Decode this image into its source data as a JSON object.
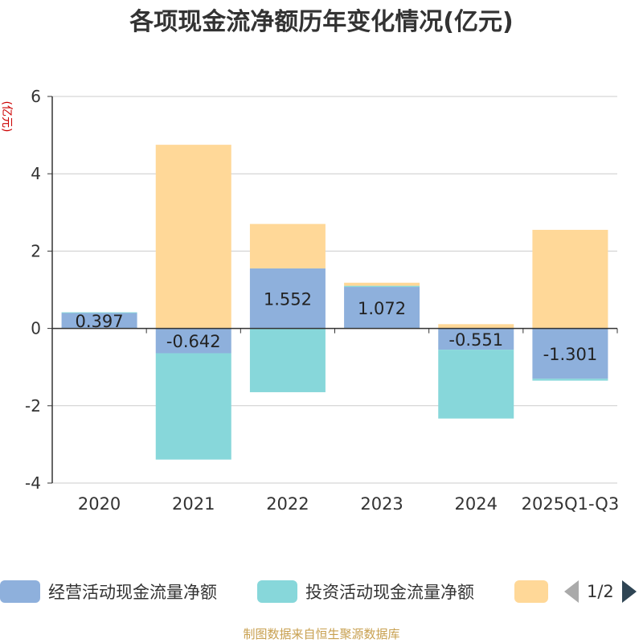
{
  "chart_data": {
    "type": "bar",
    "stacked": true,
    "title": "各项现金流净额历年变化情况(亿元)",
    "ylabel": "(亿元)",
    "xlabel": "",
    "ylim": [
      -4,
      6
    ],
    "yticks": [
      -4,
      -2,
      0,
      2,
      4,
      6
    ],
    "categories": [
      "2020",
      "2021",
      "2022",
      "2023",
      "2024",
      "2025Q1-Q3"
    ],
    "series": [
      {
        "name": "经营活动现金流量净额",
        "color": "#8eb0dc",
        "values": [
          0.397,
          -0.642,
          1.552,
          1.072,
          -0.551,
          -1.301
        ],
        "labels": [
          "0.397",
          "-0.642",
          "1.552",
          "1.072",
          "-0.551",
          "-1.301"
        ]
      },
      {
        "name": "投资活动现金流量净额",
        "color": "#87d7da",
        "values": [
          0.02,
          -2.75,
          -1.65,
          0.03,
          -1.78,
          -0.05
        ]
      },
      {
        "name": "",
        "color": "#ffd898",
        "values": [
          0.0,
          4.75,
          1.15,
          0.08,
          0.11,
          2.55
        ]
      }
    ],
    "gridlines": true,
    "legend_position": "bottom"
  },
  "legend": {
    "items": [
      {
        "label": "经营活动现金流量净额",
        "color": "#8eb0dc"
      },
      {
        "label": "投资活动现金流量净额",
        "color": "#87d7da"
      },
      {
        "label": "",
        "color": "#ffd898"
      }
    ],
    "page": "1/2"
  },
  "source": "制图数据来自恒生聚源数据库"
}
